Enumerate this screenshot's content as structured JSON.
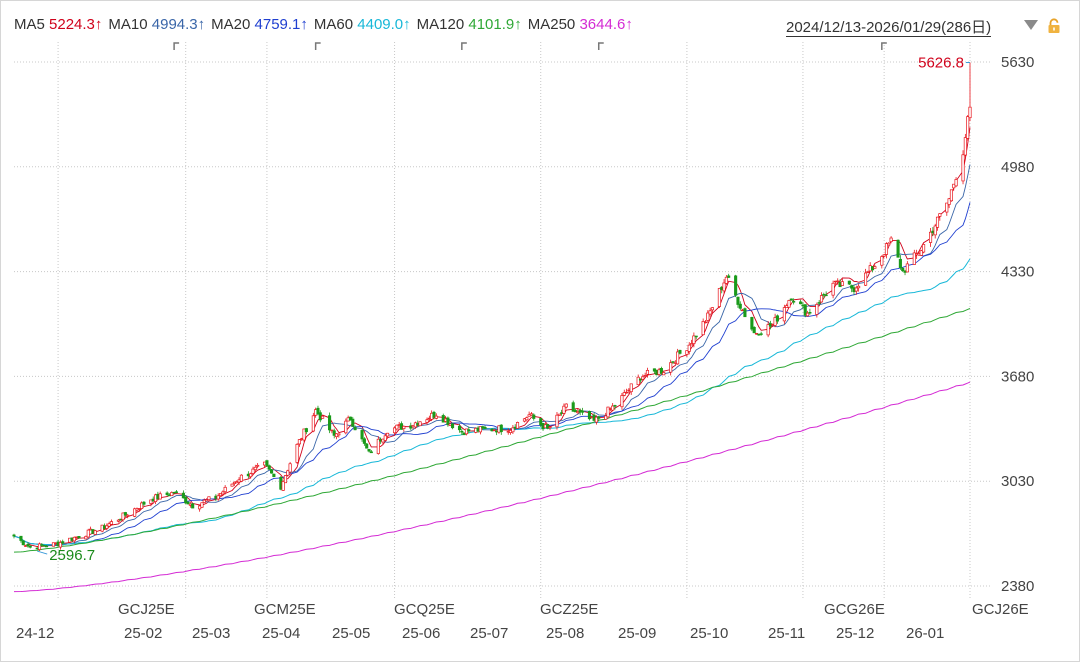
{
  "header": {
    "ma": [
      {
        "label": "MA5",
        "value": "5224.3↑",
        "color": "#d0021b"
      },
      {
        "label": "MA10",
        "value": "4994.3↑",
        "color": "#3a66a8"
      },
      {
        "label": "MA20",
        "value": "4759.1↑",
        "color": "#1f3fd0"
      },
      {
        "label": "MA60",
        "value": "4409.0↑",
        "color": "#18b8d8"
      },
      {
        "label": "MA120",
        "value": "4101.9↑",
        "color": "#2fa836"
      },
      {
        "label": "MA250",
        "value": "3644.6↑",
        "color": "#d42bd4"
      }
    ],
    "range": "2024/12/13-2026/01/29(286日)",
    "dropdown_icon": "triangle-down-icon",
    "lock_icon": "lock-icon"
  },
  "chart_data": {
    "type": "candlestick",
    "y_axis": {
      "ticks": [
        "5630",
        "4980",
        "4330",
        "3680",
        "3030",
        "2380"
      ],
      "range": [
        2380,
        5630
      ]
    },
    "x_axis": {
      "month_labels": [
        "24-12",
        "25-02",
        "25-03",
        "25-04",
        "25-05",
        "25-06",
        "25-07",
        "25-08",
        "25-09",
        "25-10",
        "25-11",
        "25-12",
        "26-01"
      ],
      "contract_labels": [
        "GCJ25E",
        "GCM25E",
        "GCQ25E",
        "GCZ25E",
        "GCG26E",
        "GCJ26E"
      ]
    },
    "annotations": {
      "high": "5626.8",
      "low": "2596.7"
    },
    "close_path": [
      [
        "2024-12-13",
        2690
      ],
      [
        "2024-12-20",
        2620
      ],
      [
        "2024-12-31",
        2640
      ],
      [
        "2025-01-10",
        2690
      ],
      [
        "2025-01-20",
        2740
      ],
      [
        "2025-01-31",
        2830
      ],
      [
        "2025-02-10",
        2920
      ],
      [
        "2025-02-20",
        2960
      ],
      [
        "2025-02-28",
        2880
      ],
      [
        "2025-03-10",
        2930
      ],
      [
        "2025-03-20",
        3050
      ],
      [
        "2025-03-31",
        3130
      ],
      [
        "2025-04-07",
        3000
      ],
      [
        "2025-04-14",
        3250
      ],
      [
        "2025-04-22",
        3470
      ],
      [
        "2025-04-30",
        3310
      ],
      [
        "2025-05-07",
        3420
      ],
      [
        "2025-05-15",
        3200
      ],
      [
        "2025-05-23",
        3350
      ],
      [
        "2025-06-02",
        3380
      ],
      [
        "2025-06-13",
        3450
      ],
      [
        "2025-06-24",
        3340
      ],
      [
        "2025-07-03",
        3350
      ],
      [
        "2025-07-15",
        3360
      ],
      [
        "2025-07-23",
        3440
      ],
      [
        "2025-07-31",
        3350
      ],
      [
        "2025-08-08",
        3490
      ],
      [
        "2025-08-20",
        3400
      ],
      [
        "2025-08-29",
        3500
      ],
      [
        "2025-09-09",
        3680
      ],
      [
        "2025-09-19",
        3720
      ],
      [
        "2025-09-30",
        3880
      ],
      [
        "2025-10-08",
        4050
      ],
      [
        "2025-10-16",
        4300
      ],
      [
        "2025-10-21",
        4150
      ],
      [
        "2025-10-28",
        3950
      ],
      [
        "2025-11-05",
        4000
      ],
      [
        "2025-11-13",
        4180
      ],
      [
        "2025-11-20",
        4070
      ],
      [
        "2025-12-01",
        4250
      ],
      [
        "2025-12-10",
        4230
      ],
      [
        "2025-12-19",
        4370
      ],
      [
        "2025-12-26",
        4520
      ],
      [
        "2025-12-31",
        4330
      ],
      [
        "2026-01-08",
        4470
      ],
      [
        "2026-01-14",
        4620
      ],
      [
        "2026-01-20",
        4780
      ],
      [
        "2026-01-26",
        5080
      ],
      [
        "2026-01-29",
        5350
      ]
    ],
    "series": [
      {
        "name": "MA5",
        "last": 5224.3
      },
      {
        "name": "MA10",
        "last": 4994.3
      },
      {
        "name": "MA20",
        "last": 4759.1
      },
      {
        "name": "MA60",
        "last": 4409.0
      },
      {
        "name": "MA120",
        "last": 4101.9
      },
      {
        "name": "MA250",
        "last": 3644.6
      }
    ],
    "colors": {
      "up": "#e8141b",
      "down": "#1a9a1a",
      "grid": "#c8c8c8"
    }
  }
}
